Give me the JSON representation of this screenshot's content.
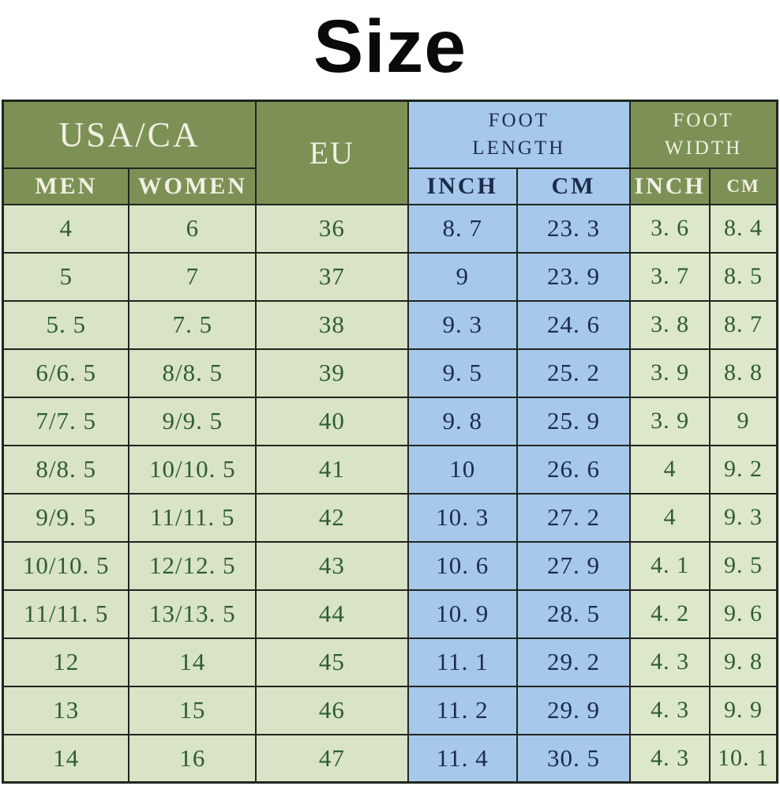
{
  "page": {
    "title": "Size"
  },
  "colors": {
    "header_green_bg": "#7d9156",
    "header_green_text": "#f2f0e3",
    "blue_bg": "#a6c8ea",
    "navy_text": "#1c2b4d",
    "cell_green_bg": "#d9e3c5",
    "cell_green_bg_width": "#dde7ca",
    "green_text": "#2e5e2e",
    "border": "#20261f",
    "title_text": "#0a0a0a"
  },
  "size_table": {
    "header": {
      "usa_ca": "USA/CA",
      "eu": "EU",
      "foot_length": "FOOT LENGTH",
      "foot_width": "FOOT WIDTH",
      "men": "MEN",
      "women": "WOMEN",
      "length_inch": "INCH",
      "length_cm": "CM",
      "width_inch": "INCH",
      "width_cm": "CM"
    },
    "rows": [
      [
        "4",
        "6",
        "36",
        "8. 7",
        "23. 3",
        "3. 6",
        "8. 4"
      ],
      [
        "5",
        "7",
        "37",
        "9",
        "23. 9",
        "3. 7",
        "8. 5"
      ],
      [
        "5. 5",
        "7. 5",
        "38",
        "9. 3",
        "24. 6",
        "3. 8",
        "8. 7"
      ],
      [
        "6/6. 5",
        "8/8. 5",
        "39",
        "9. 5",
        "25. 2",
        "3. 9",
        "8. 8"
      ],
      [
        "7/7. 5",
        "9/9. 5",
        "40",
        "9. 8",
        "25. 9",
        "3. 9",
        "9"
      ],
      [
        "8/8. 5",
        "10/10. 5",
        "41",
        "10",
        "26. 6",
        "4",
        "9. 2"
      ],
      [
        "9/9. 5",
        "11/11. 5",
        "42",
        "10. 3",
        "27. 2",
        "4",
        "9. 3"
      ],
      [
        "10/10. 5",
        "12/12. 5",
        "43",
        "10. 6",
        "27. 9",
        "4. 1",
        "9. 5"
      ],
      [
        "11/11. 5",
        "13/13. 5",
        "44",
        "10. 9",
        "28. 5",
        "4. 2",
        "9. 6"
      ],
      [
        "12",
        "14",
        "45",
        "11. 1",
        "29. 2",
        "4. 3",
        "9. 8"
      ],
      [
        "13",
        "15",
        "46",
        "11. 2",
        "29. 9",
        "4. 3",
        "9. 9"
      ],
      [
        "14",
        "16",
        "47",
        "11. 4",
        "30. 5",
        "4. 3",
        "10. 1"
      ]
    ]
  },
  "chart_data": {
    "type": "table",
    "title": "Size",
    "columns": [
      "USA/CA MEN",
      "USA/CA WOMEN",
      "EU",
      "FOOT LENGTH INCH",
      "FOOT LENGTH CM",
      "FOOT WIDTH INCH",
      "FOOT WIDTH CM"
    ],
    "rows": [
      [
        "4",
        "6",
        "36",
        "8.7",
        "23.3",
        "3.6",
        "8.4"
      ],
      [
        "5",
        "7",
        "37",
        "9",
        "23.9",
        "3.7",
        "8.5"
      ],
      [
        "5.5",
        "7.5",
        "38",
        "9.3",
        "24.6",
        "3.8",
        "8.7"
      ],
      [
        "6/6.5",
        "8/8.5",
        "39",
        "9.5",
        "25.2",
        "3.9",
        "8.8"
      ],
      [
        "7/7.5",
        "9/9.5",
        "40",
        "9.8",
        "25.9",
        "3.9",
        "9"
      ],
      [
        "8/8.5",
        "10/10.5",
        "41",
        "10",
        "26.6",
        "4",
        "9.2"
      ],
      [
        "9/9.5",
        "11/11.5",
        "42",
        "10.3",
        "27.2",
        "4",
        "9.3"
      ],
      [
        "10/10.5",
        "12/12.5",
        "43",
        "10.6",
        "27.9",
        "4.1",
        "9.5"
      ],
      [
        "11/11.5",
        "13/13.5",
        "44",
        "10.9",
        "28.5",
        "4.2",
        "9.6"
      ],
      [
        "12",
        "14",
        "45",
        "11.1",
        "29.2",
        "4.3",
        "9.8"
      ],
      [
        "13",
        "15",
        "46",
        "11.2",
        "29.9",
        "4.3",
        "9.9"
      ],
      [
        "14",
        "16",
        "47",
        "11.4",
        "30.5",
        "4.3",
        "10.1"
      ]
    ]
  }
}
